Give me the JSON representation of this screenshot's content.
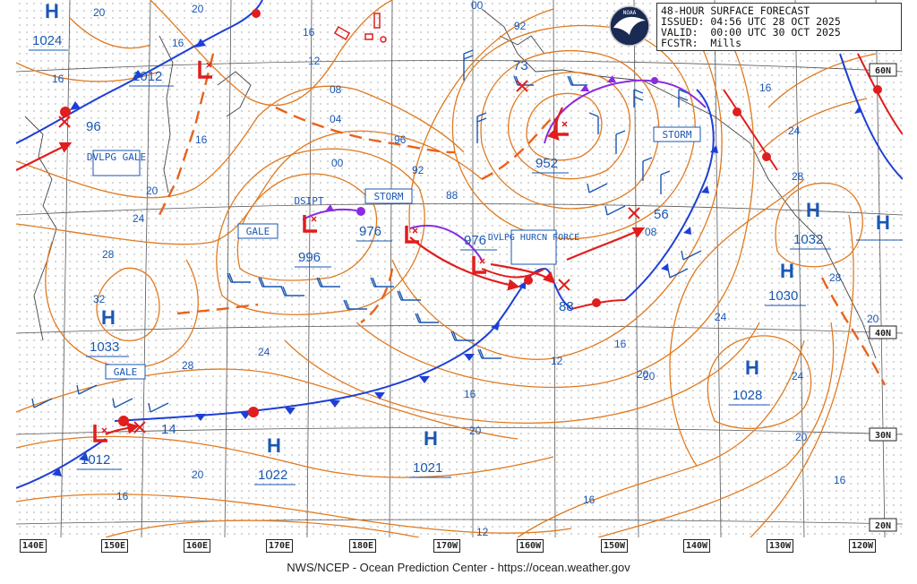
{
  "header": {
    "title": "48-HOUR SURFACE FORECAST",
    "issued": "ISSUED: 04:56 UTC 28 OCT 2025",
    "valid": "VALID:  00:00 UTC 30 OCT 2025",
    "forecaster": "FCSTR:  Mills",
    "logo_text": "NOAA"
  },
  "credit": "NWS/NCEP - Ocean Prediction Center - https://ocean.weather.gov",
  "colors": {
    "isobar": "#e07a1f",
    "high": "#1a57b3",
    "low": "#e11d1d",
    "cold_front": "#1d3fd6",
    "warm_front": "#e11d1d",
    "occluded_front": "#8a2be2",
    "trough": "#e8621c",
    "grid": "#555555"
  },
  "longitude_labels": [
    "140E",
    "150E",
    "160E",
    "170E",
    "180E",
    "170W",
    "160W",
    "150W",
    "140W",
    "130W",
    "120W"
  ],
  "latitude_labels": [
    "60N",
    "40N",
    "30N",
    "20N"
  ],
  "highs": [
    {
      "label": "H",
      "pressure": "1024"
    },
    {
      "label": "H",
      "pressure": "1033"
    },
    {
      "label": "H",
      "pressure": "1022"
    },
    {
      "label": "H",
      "pressure": "1021"
    },
    {
      "label": "H",
      "pressure": "1032"
    },
    {
      "label": "H",
      "pressure": "1030"
    },
    {
      "label": "H",
      "pressure": "1028"
    },
    {
      "label": "H",
      "pressure": ""
    }
  ],
  "lows": [
    {
      "label": "L",
      "pressure": "1012"
    },
    {
      "label": "L",
      "pressure": "996"
    },
    {
      "label": "L",
      "pressure": "976"
    },
    {
      "label": "L",
      "pressure": "976"
    },
    {
      "label": "L",
      "pressure": "952"
    },
    {
      "label": "L",
      "pressure": "1012"
    }
  ],
  "future_positions": [
    "96",
    "73",
    "56",
    "88",
    "14"
  ],
  "warnings": [
    "DVLPG GALE",
    "GALE",
    "DSIPT",
    "STORM",
    "DVLPG HURCN FORCE",
    "STORM",
    "GALE"
  ],
  "isobar_labels": [
    "20",
    "20",
    "16",
    "16",
    "12",
    "08",
    "04",
    "00",
    "96",
    "92",
    "88",
    "92",
    "00",
    "16",
    "16",
    "20",
    "24",
    "28",
    "32",
    "28",
    "24",
    "16",
    "12",
    "08",
    "20",
    "24",
    "28",
    "24",
    "20",
    "20",
    "16",
    "20",
    "16",
    "16",
    "16",
    "12",
    "16",
    "20",
    "28",
    "24",
    "20"
  ]
}
